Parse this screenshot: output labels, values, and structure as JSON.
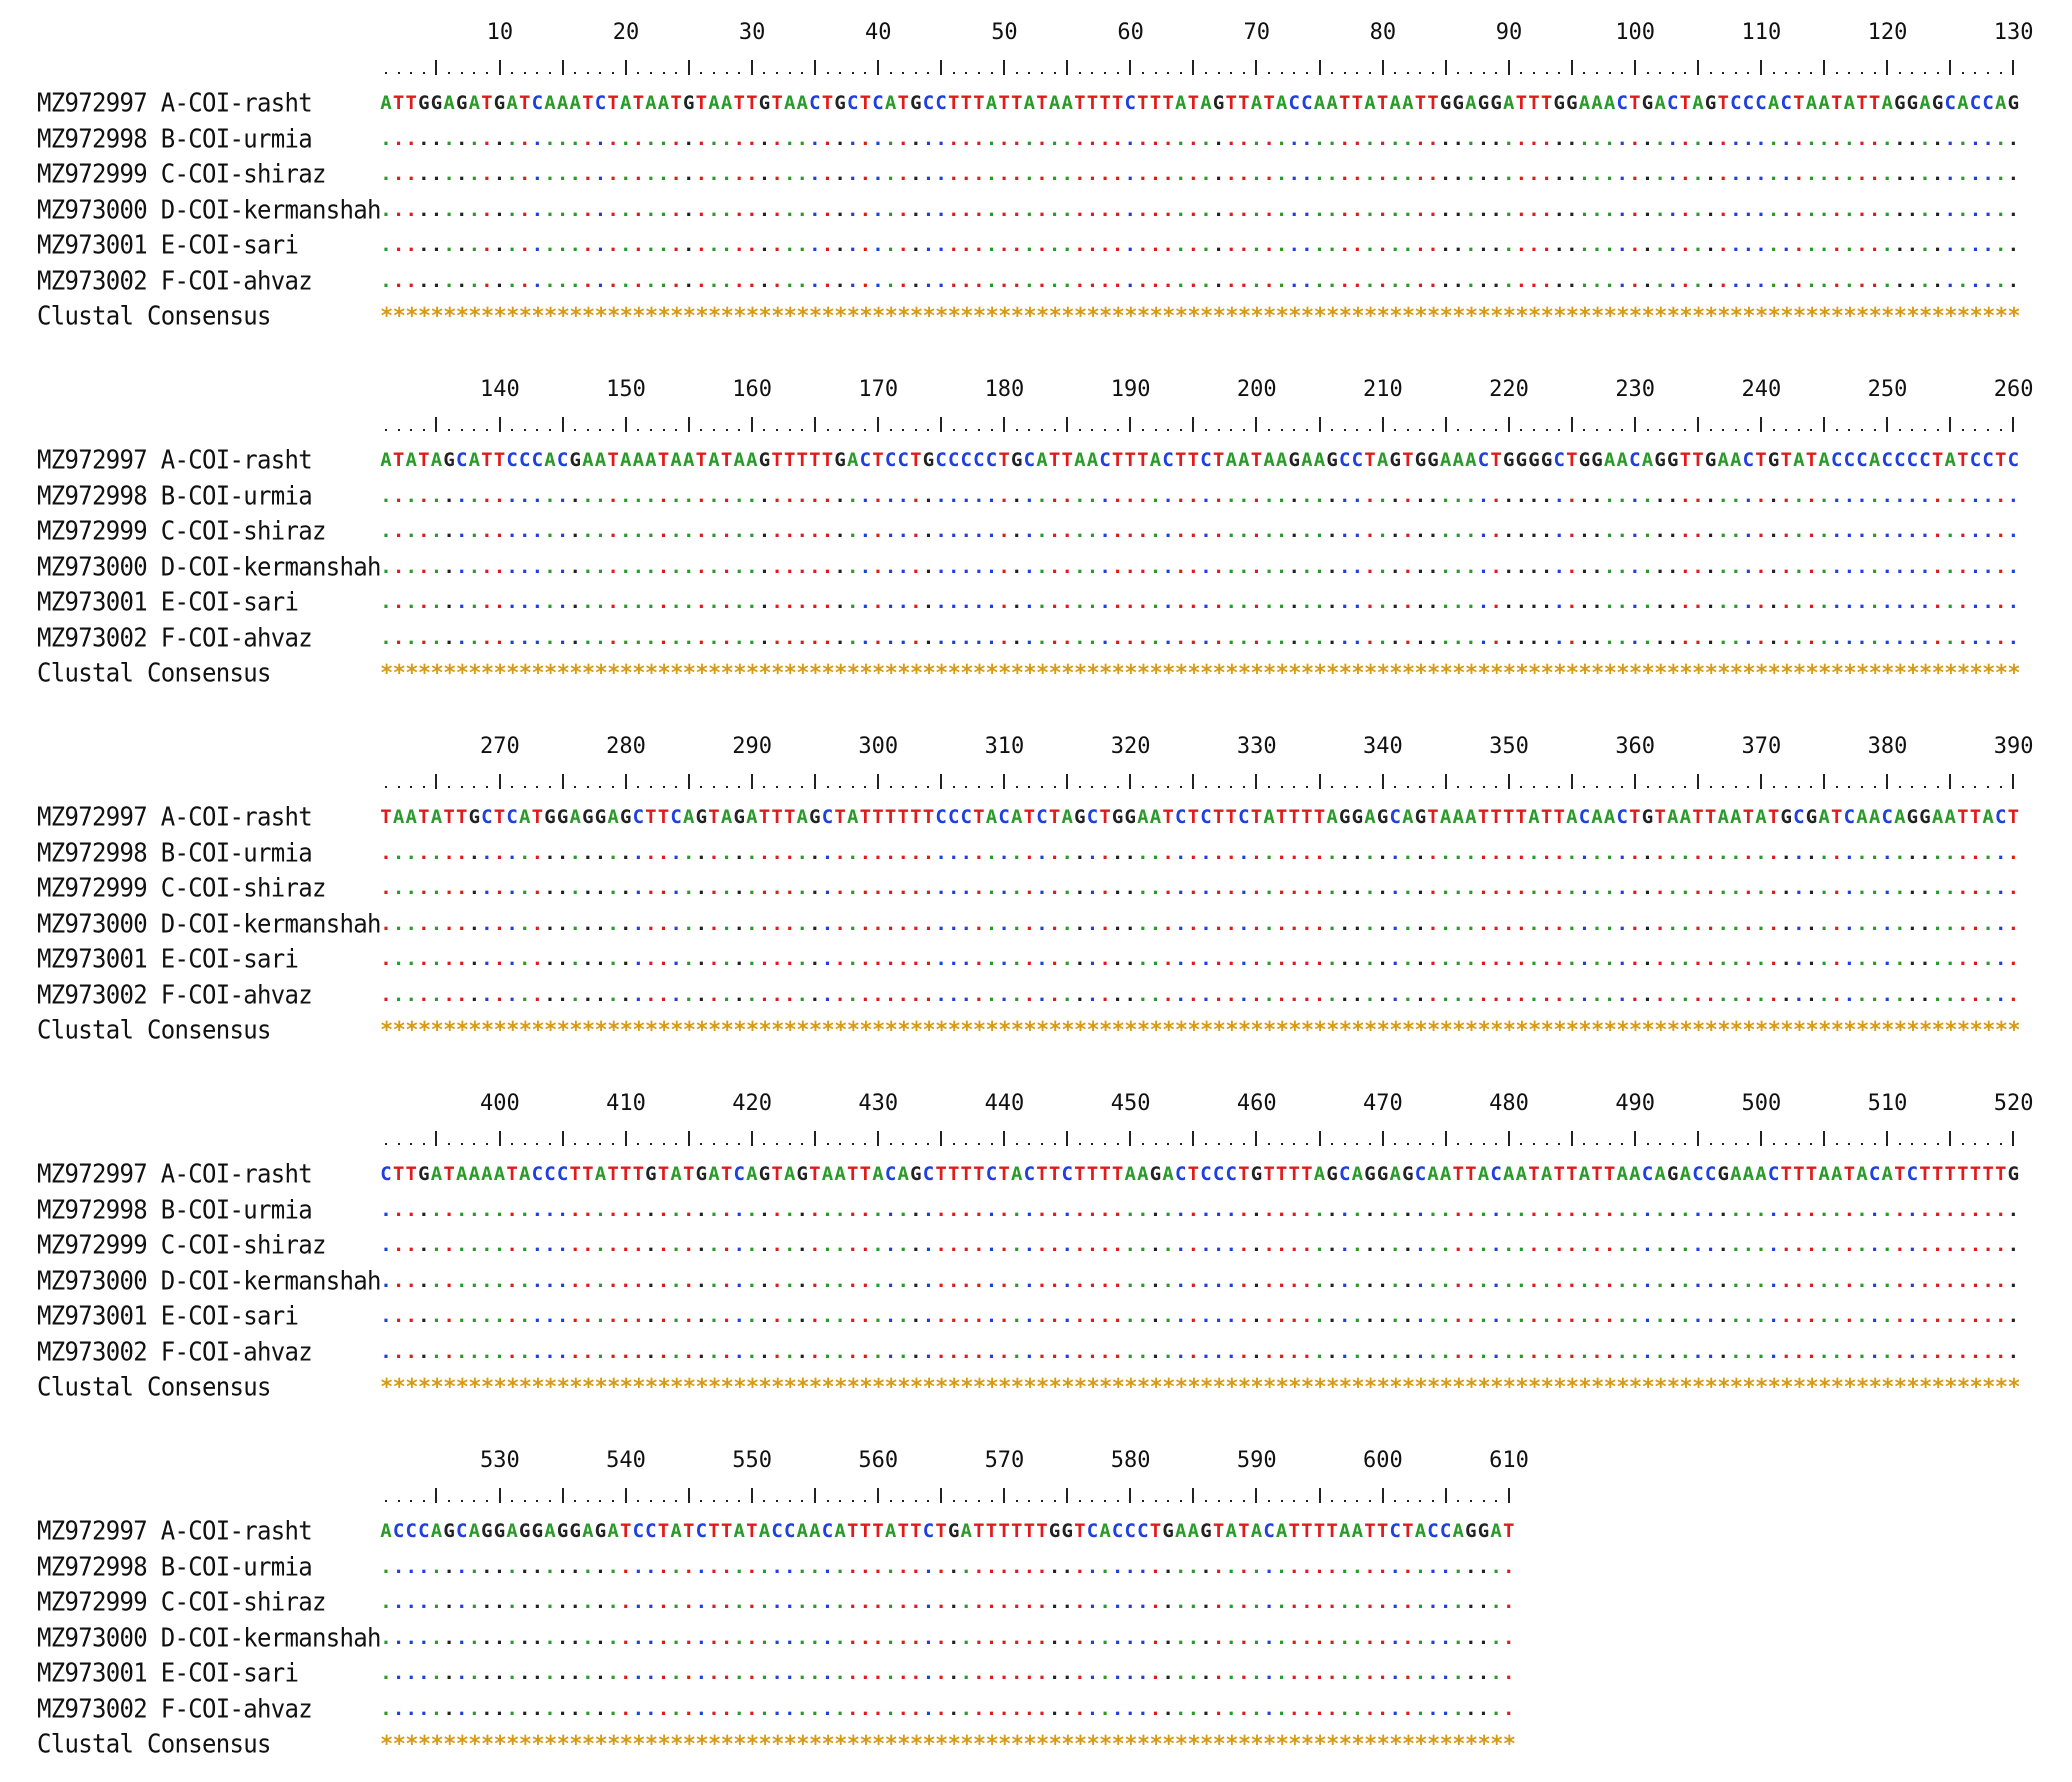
{
  "labels": [
    "MZ972997 A-COI-rasht",
    "MZ972998 B-COI-urmia",
    "MZ972999 C-COI-shiraz",
    "MZ973000 D-COI-kermanshah",
    "MZ973001 E-COI-sari",
    "MZ973002 F-COI-ahvaz",
    "Clustal Consensus"
  ],
  "block_length": 130,
  "blocks": [
    {
      "start": 1,
      "numbers": [
        "10",
        "20",
        "30",
        "40",
        "50",
        "60",
        "70",
        "80",
        "90",
        "100",
        "110",
        "120",
        "130"
      ],
      "reference": "ATTGGAGATGATCAAATCTATAATGTAATTGTAACTGCTCATGCCTTTATTATAATTTTCTTTATAGTTATACCAATTATAATTGGAGGATTTGGAAACTGACTAGTCCCACTAATATTAGGAGCACCAG"
    },
    {
      "start": 131,
      "numbers": [
        "140",
        "150",
        "160",
        "170",
        "180",
        "190",
        "200",
        "210",
        "220",
        "230",
        "240",
        "250",
        "260"
      ],
      "reference": "ATATAGCATTCCCACGAATAAATAATATAAGTTTTTGACTCCTGCCCCCTGCATTAACTTTACTTCTAATAAGAAGCCTAGTGGAAACTGGGGCTGGAACAGGTTGAACTGTATACCCACCCCTATCCTC"
    },
    {
      "start": 261,
      "numbers": [
        "270",
        "280",
        "290",
        "300",
        "310",
        "320",
        "330",
        "340",
        "350",
        "360",
        "370",
        "380",
        "390"
      ],
      "reference": "TAATATTGCTCATGGAGGAGCTTCAGTAGATTTAGCTATTTTTTCCCTACATCTAGCTGGAATCTCTTCTATTTTAGGAGCAGTAAATTTTATTACAACTGTAATTAATATGCGATCAACAGGAATTACT"
    },
    {
      "start": 391,
      "numbers": [
        "400",
        "410",
        "420",
        "430",
        "440",
        "450",
        "460",
        "470",
        "480",
        "490",
        "500",
        "510",
        "520"
      ],
      "reference": "CTTGATAAAATACCCTTATTTGTATGATCAGTAGTAATTACAGCTTTTCTACTTCTTTTAAGACTCCCTGTTTTAGCAGGAGCAATTACAATATTATTAACAGACCGAAACTTTAATACATCTTTTTTTG"
    },
    {
      "start": 521,
      "numbers": [
        "530",
        "540",
        "550",
        "560",
        "570",
        "580",
        "590",
        "600",
        "610"
      ],
      "reference": "ACCCAGCAGGAGGAGGAGATCCTATCTTATACCAACATTTATTCTGATTTTTTGGTCACCCTGAAGTATACATTTTAATTCTACCAGGAT"
    }
  ],
  "identical_symbol": ".",
  "consensus_symbol": "*",
  "colors": {
    "A": "#2a9a2a",
    "T": "#e01b1b",
    "G": "#222222",
    "C": "#1f3fe0",
    "consensus": "#d79a14"
  }
}
